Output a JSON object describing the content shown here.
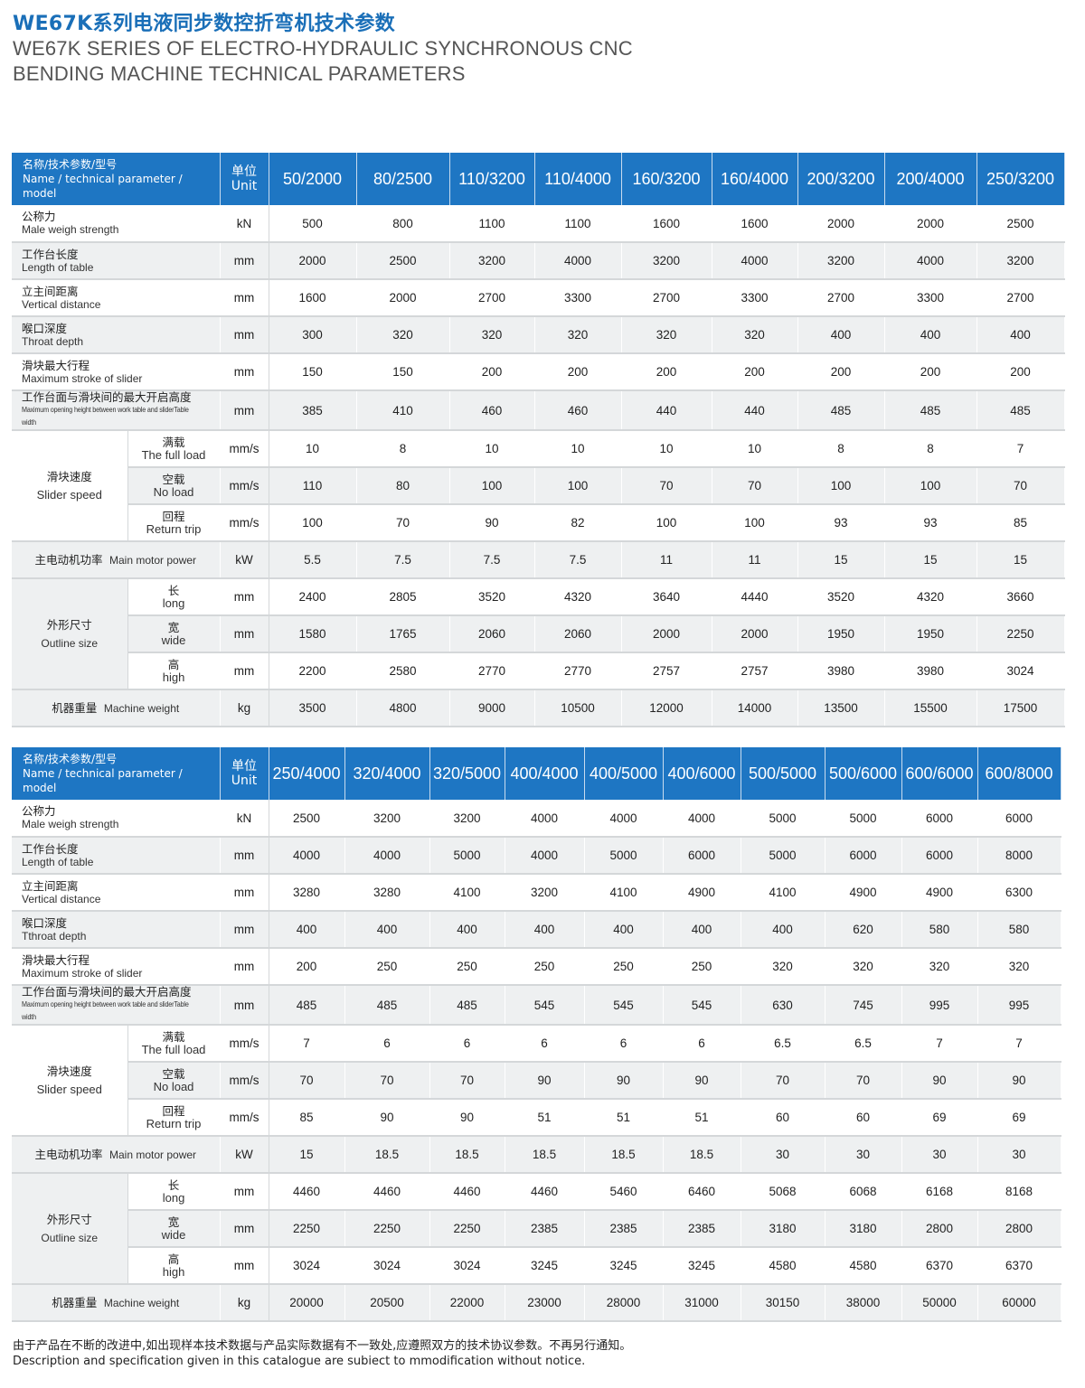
{
  "header": {
    "title_cn": "WE67K系列电液同步数控折弯机技术参数",
    "title_en_line1": "WE67K SERIES OF ELECTRO-HYDRAULIC SYNCHRONOUS CNC",
    "title_en_line2": "BENDING MACHINE TECHNICAL PARAMETERS"
  },
  "labels": {
    "name_cn": "名称/技术参数/型号",
    "name_en": "Name / technical parameter / model",
    "unit_cn": "单位",
    "unit_en": "Unit"
  },
  "params": [
    {
      "cn": "公称力",
      "en": "Male weigh strength",
      "unit": "kN"
    },
    {
      "cn": "工作台长度",
      "en": "Length of table",
      "unit": "mm"
    },
    {
      "cn": "立主间距离",
      "en": "Vertical distance",
      "unit": "mm"
    },
    {
      "cn": "喉口深度",
      "en": "Throat depth",
      "en_t2": "Tthroat depth",
      "unit": "mm"
    },
    {
      "cn": "滑块最大行程",
      "en": "Maximum stroke of slider",
      "unit": "mm"
    },
    {
      "cn": "工作台面与滑块间的最大开启高度",
      "en": "Maximum opening height between work table and sliderTable width",
      "unit": "mm"
    },
    {
      "group_cn": "滑块速度",
      "group_en": "Slider speed",
      "cn": "满载",
      "en": "The full load",
      "unit": "mm/s"
    },
    {
      "cn": "空载",
      "en": "No load",
      "unit": "mm/s"
    },
    {
      "cn": "回程",
      "en": "Return trip",
      "unit": "mm/s"
    },
    {
      "cn": "主电动机功率",
      "en": "Main motor power",
      "unit": "kW"
    },
    {
      "group_cn": "外形尺寸",
      "group_en": "Outline size",
      "cn": "长",
      "en": "long",
      "unit": "mm"
    },
    {
      "cn": "宽",
      "en": "wide",
      "unit": "mm"
    },
    {
      "cn": "高",
      "en": "high",
      "unit": "mm"
    },
    {
      "cn": "机器重量",
      "en": "Machine weight",
      "unit": "kg"
    }
  ],
  "table1": {
    "models": [
      "50/2000",
      "80/2500",
      "110/3200",
      "110/4000",
      "160/3200",
      "160/4000",
      "200/3200",
      "200/4000",
      "250/3200"
    ],
    "rows": [
      [
        "500",
        "800",
        "1100",
        "1100",
        "1600",
        "1600",
        "2000",
        "2000",
        "2500"
      ],
      [
        "2000",
        "2500",
        "3200",
        "4000",
        "3200",
        "4000",
        "3200",
        "4000",
        "3200"
      ],
      [
        "1600",
        "2000",
        "2700",
        "3300",
        "2700",
        "3300",
        "2700",
        "3300",
        "2700"
      ],
      [
        "300",
        "320",
        "320",
        "320",
        "320",
        "320",
        "400",
        "400",
        "400"
      ],
      [
        "150",
        "150",
        "200",
        "200",
        "200",
        "200",
        "200",
        "200",
        "200"
      ],
      [
        "385",
        "410",
        "460",
        "460",
        "440",
        "440",
        "485",
        "485",
        "485"
      ],
      [
        "10",
        "8",
        "10",
        "10",
        "10",
        "10",
        "8",
        "8",
        "7"
      ],
      [
        "110",
        "80",
        "100",
        "100",
        "70",
        "70",
        "100",
        "100",
        "70"
      ],
      [
        "100",
        "70",
        "90",
        "82",
        "100",
        "100",
        "93",
        "93",
        "85"
      ],
      [
        "5.5",
        "7.5",
        "7.5",
        "7.5",
        "11",
        "11",
        "15",
        "15",
        "15"
      ],
      [
        "2400",
        "2805",
        "3520",
        "4320",
        "3640",
        "4440",
        "3520",
        "4320",
        "3660"
      ],
      [
        "1580",
        "1765",
        "2060",
        "2060",
        "2000",
        "2000",
        "1950",
        "1950",
        "2250"
      ],
      [
        "2200",
        "2580",
        "2770",
        "2770",
        "2757",
        "2757",
        "3980",
        "3980",
        "3024"
      ],
      [
        "3500",
        "4800",
        "9000",
        "10500",
        "12000",
        "14000",
        "13500",
        "15500",
        "17500"
      ]
    ]
  },
  "table2": {
    "models": [
      "250/4000",
      "320/4000",
      "320/5000",
      "400/4000",
      "400/5000",
      "400/6000",
      "500/5000",
      "500/6000",
      "600/6000",
      "600/8000"
    ],
    "rows": [
      [
        "2500",
        "3200",
        "3200",
        "4000",
        "4000",
        "4000",
        "5000",
        "5000",
        "6000",
        "6000"
      ],
      [
        "4000",
        "4000",
        "5000",
        "4000",
        "5000",
        "6000",
        "5000",
        "6000",
        "6000",
        "8000"
      ],
      [
        "3280",
        "3280",
        "4100",
        "3200",
        "4100",
        "4900",
        "4100",
        "4900",
        "4900",
        "6300"
      ],
      [
        "400",
        "400",
        "400",
        "400",
        "400",
        "400",
        "400",
        "620",
        "580",
        "580"
      ],
      [
        "200",
        "250",
        "250",
        "250",
        "250",
        "250",
        "320",
        "320",
        "320",
        "320"
      ],
      [
        "485",
        "485",
        "485",
        "545",
        "545",
        "545",
        "630",
        "745",
        "995",
        "995"
      ],
      [
        "7",
        "6",
        "6",
        "6",
        "6",
        "6",
        "6.5",
        "6.5",
        "7",
        "7"
      ],
      [
        "70",
        "70",
        "70",
        "90",
        "90",
        "90",
        "70",
        "70",
        "90",
        "90"
      ],
      [
        "85",
        "90",
        "90",
        "51",
        "51",
        "51",
        "60",
        "60",
        "69",
        "69"
      ],
      [
        "15",
        "18.5",
        "18.5",
        "18.5",
        "18.5",
        "18.5",
        "30",
        "30",
        "30",
        "30"
      ],
      [
        "4460",
        "4460",
        "4460",
        "4460",
        "5460",
        "6460",
        "5068",
        "6068",
        "6168",
        "8168"
      ],
      [
        "2250",
        "2250",
        "2250",
        "2385",
        "2385",
        "2385",
        "3180",
        "3180",
        "2800",
        "2800"
      ],
      [
        "3024",
        "3024",
        "3024",
        "3245",
        "3245",
        "3245",
        "4580",
        "4580",
        "6370",
        "6370"
      ],
      [
        "20000",
        "20500",
        "22000",
        "23000",
        "28000",
        "31000",
        "30150",
        "38000",
        "50000",
        "60000"
      ]
    ]
  },
  "footer": {
    "note_cn": "由于产品在不断的改进中,如出现样本技术数据与产品实际数据有不一致处,应遵照双方的技术协议参数。不再另行通知。",
    "note_en": "Description and specification given in this catalogue are subiect to mmodification without notice."
  }
}
